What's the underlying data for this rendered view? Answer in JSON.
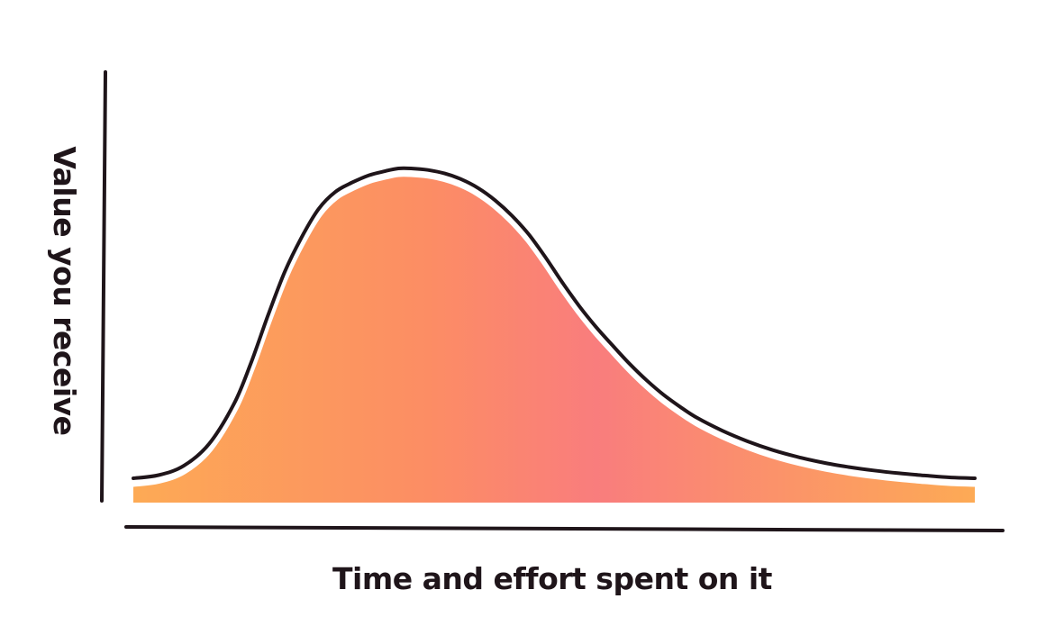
{
  "colors": {
    "ink": "#1f151a",
    "gradient_start": "#fdaa55",
    "gradient_mid": "#fc8d64",
    "gradient_peak": "#f97d7d",
    "outline_highlight": "#ffffff",
    "background": "#ffffff"
  },
  "chart_data": {
    "type": "area",
    "title": "",
    "xlabel": "Time and effort spent on it",
    "ylabel": "Value you receive",
    "grid": false,
    "legend": "none",
    "xlim": [
      0,
      100
    ],
    "ylim": [
      0,
      100
    ],
    "series": [
      {
        "x": [
          0,
          3,
          6,
          9,
          12,
          14,
          16,
          18,
          20,
          22,
          24,
          26,
          28,
          30,
          31.5,
          33,
          35,
          37,
          39,
          41,
          43,
          45,
          47,
          49,
          51,
          53,
          55,
          57,
          59,
          61,
          63,
          65,
          67,
          70,
          73,
          76,
          79,
          82,
          85,
          88,
          91,
          94,
          97,
          100
        ],
        "y": [
          1,
          2,
          5,
          12,
          25,
          38,
          53,
          67,
          78,
          87,
          92.5,
          95.5,
          97.8,
          99.2,
          100,
          100,
          99.5,
          98.4,
          96.5,
          93.7,
          89.8,
          84.9,
          78.9,
          71.5,
          63.5,
          56,
          49.3,
          43.3,
          37.5,
          32.3,
          27.7,
          23.8,
          20.3,
          16.2,
          12.8,
          10,
          7.8,
          6,
          4.6,
          3.5,
          2.6,
          1.9,
          1.3,
          1
        ]
      }
    ]
  }
}
